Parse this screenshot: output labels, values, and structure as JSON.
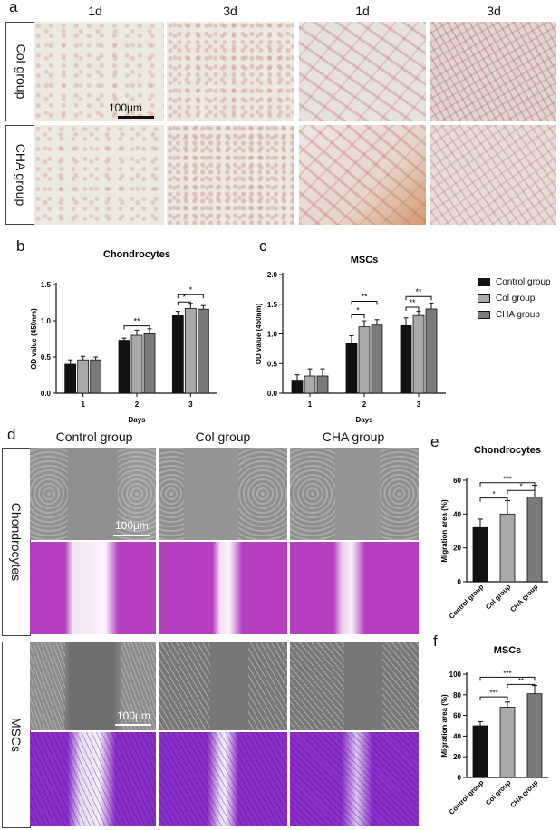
{
  "panels": {
    "a": "a",
    "b": "b",
    "c": "c",
    "d": "d",
    "e": "e",
    "f": "f"
  },
  "panel_a": {
    "col_headers": [
      "1d",
      "3d",
      "1d",
      "3d"
    ],
    "rows": [
      "Col group",
      "CHA group"
    ],
    "scale_bar": "100μm"
  },
  "panel_d": {
    "col_headers": [
      "Control group",
      "Col group",
      "CHA group"
    ],
    "rows": [
      "Chondrocytes",
      "MSCs"
    ],
    "scale_bar": "100μm"
  },
  "legend_bc": [
    "Control group",
    "Col group",
    "CHA group"
  ],
  "colors": {
    "control": "#111111",
    "col": "#a9a9a9",
    "cha": "#7a7a7a"
  },
  "chart_data": [
    {
      "id": "b",
      "type": "bar",
      "title": "Chondrocytes",
      "xlabel": "Days",
      "ylabel": "OD value (450nm)",
      "categories": [
        "1",
        "2",
        "3"
      ],
      "ylim": [
        0,
        1.5
      ],
      "yticks": [
        "0.0",
        "0.5",
        "1.0",
        "1.5"
      ],
      "series": [
        {
          "name": "Control group",
          "values": [
            0.4,
            0.73,
            1.07
          ],
          "errors": [
            0.06,
            0.03,
            0.06
          ]
        },
        {
          "name": "Col group",
          "values": [
            0.46,
            0.8,
            1.17
          ],
          "errors": [
            0.05,
            0.07,
            0.07
          ]
        },
        {
          "name": "CHA group",
          "values": [
            0.46,
            0.82,
            1.16
          ],
          "errors": [
            0.04,
            0.07,
            0.05
          ]
        }
      ],
      "significance": [
        {
          "group": 1,
          "from": 0,
          "to": 2,
          "label": "**",
          "level": 0.93
        },
        {
          "group": 2,
          "from": 0,
          "to": 1,
          "label": "*",
          "level": 1.26
        },
        {
          "group": 2,
          "from": 0,
          "to": 2,
          "label": "*",
          "level": 1.36
        }
      ]
    },
    {
      "id": "c",
      "type": "bar",
      "title": "MSCs",
      "xlabel": "Days",
      "ylabel": "OD value (450nm)",
      "categories": [
        "1",
        "2",
        "3"
      ],
      "ylim": [
        0,
        2.0
      ],
      "yticks": [
        "0.0",
        "0.5",
        "1.0",
        "1.5",
        "2.0"
      ],
      "series": [
        {
          "name": "Control group",
          "values": [
            0.22,
            0.84,
            1.14
          ],
          "errors": [
            0.09,
            0.13,
            0.13
          ]
        },
        {
          "name": "Col group",
          "values": [
            0.29,
            1.12,
            1.31
          ],
          "errors": [
            0.12,
            0.1,
            0.07
          ]
        },
        {
          "name": "CHA group",
          "values": [
            0.29,
            1.15,
            1.42
          ],
          "errors": [
            0.12,
            0.09,
            0.1
          ]
        }
      ],
      "significance": [
        {
          "group": 1,
          "from": 0,
          "to": 1,
          "label": "*",
          "level": 1.32
        },
        {
          "group": 1,
          "from": 0,
          "to": 2,
          "label": "**",
          "level": 1.55
        },
        {
          "group": 2,
          "from": 0,
          "to": 1,
          "label": "**",
          "level": 1.45
        },
        {
          "group": 2,
          "from": 0,
          "to": 2,
          "label": "**",
          "level": 1.63
        }
      ]
    },
    {
      "id": "e",
      "type": "bar",
      "title": "Chondrocytes",
      "ylabel": "Migration area (%)",
      "categories": [
        "Control group",
        "Col group",
        "CHA group"
      ],
      "ylim": [
        0,
        60
      ],
      "yticks": [
        "0",
        "20",
        "40",
        "60"
      ],
      "values": [
        32,
        40,
        50
      ],
      "errors": [
        5,
        8,
        7
      ],
      "significance": [
        {
          "from": 0,
          "to": 1,
          "label": "*",
          "level": 49.5
        },
        {
          "from": 1,
          "to": 2,
          "label": "*",
          "level": 54
        },
        {
          "from": 0,
          "to": 2,
          "label": "***",
          "level": 58.5
        }
      ]
    },
    {
      "id": "f",
      "type": "bar",
      "title": "MSCs",
      "ylabel": "Migration area (%)",
      "categories": [
        "Control group",
        "Col group",
        "CHA group"
      ],
      "ylim": [
        0,
        100
      ],
      "yticks": [
        "0",
        "20",
        "40",
        "60",
        "80",
        "100"
      ],
      "values": [
        50,
        68,
        81
      ],
      "errors": [
        4,
        5,
        8
      ],
      "significance": [
        {
          "from": 0,
          "to": 1,
          "label": "***",
          "level": 78
        },
        {
          "from": 1,
          "to": 2,
          "label": "**",
          "level": 90
        },
        {
          "from": 0,
          "to": 2,
          "label": "***",
          "level": 97
        }
      ]
    }
  ]
}
